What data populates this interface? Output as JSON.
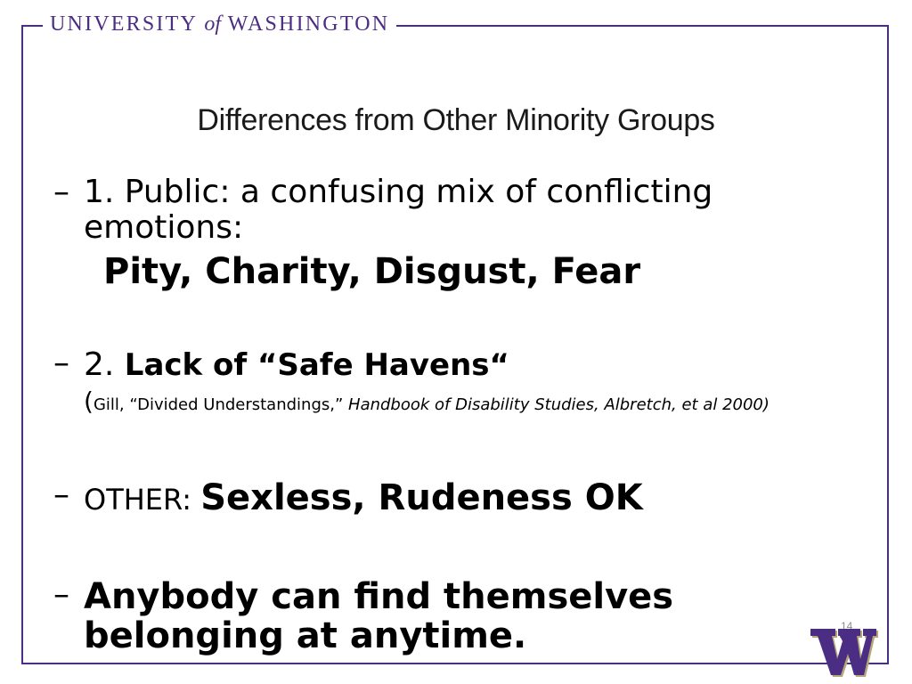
{
  "header": {
    "brand_left": "UNIVERSITY",
    "brand_of": "of",
    "brand_right": "WASHINGTON",
    "accent_color": "#4b2e83"
  },
  "slide": {
    "title": "Differences from Other Minority Groups",
    "bullet_marker": "–",
    "bullet1": {
      "text": "1. Public: a confusing mix of conflicting emotions:",
      "emphasis": "Pity, Charity, Disgust, Fear"
    },
    "bullet2": {
      "prefix": "2. ",
      "bold": "Lack of “Safe Havens“",
      "citation_open": "(",
      "citation_text": "Gill, “Divided Understandings,” ",
      "citation_italic": "Handbook of Disability Studies, Albretch, et al 2000)"
    },
    "bullet3": {
      "prefix": "OTHER: ",
      "bold": "Sexless, Rudeness OK"
    },
    "bullet4": {
      "text": "Anybody can find themselves belonging at anytime."
    },
    "slide_number": "14",
    "logo_icon": "uw-w-logo-icon"
  }
}
